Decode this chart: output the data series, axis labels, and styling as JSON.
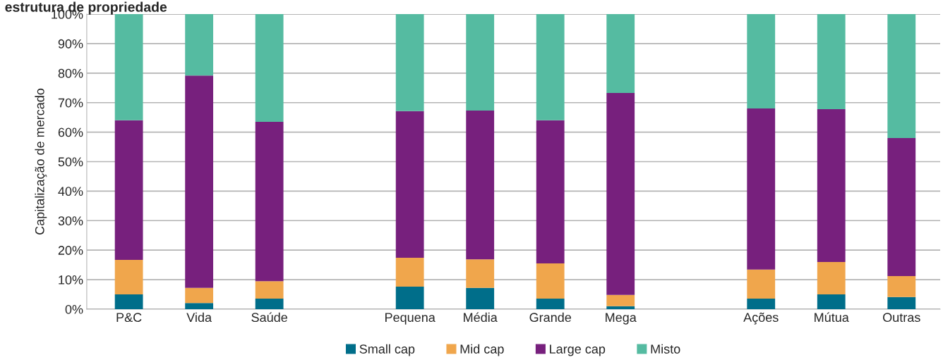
{
  "chart_data": {
    "type": "bar",
    "stacked": true,
    "title": "estrutura de propriedade",
    "ylabel": "Capitalização de mercado",
    "categories": [
      "P&C",
      "Vida",
      "Saúde",
      null,
      "Pequena",
      "Média",
      "Grande",
      "Mega",
      null,
      "Ações",
      "Mútua",
      "Outras"
    ],
    "series": [
      {
        "name": "Small cap",
        "color": "#006e8a",
        "values": [
          5.0,
          2.1,
          3.6,
          null,
          7.6,
          7.2,
          3.6,
          1.0,
          null,
          3.6,
          5.0,
          4.1
        ]
      },
      {
        "name": "Mid cap",
        "color": "#f0a64c",
        "values": [
          11.7,
          5.1,
          5.9,
          null,
          9.8,
          9.7,
          11.9,
          3.8,
          null,
          9.8,
          11.0,
          7.1
        ]
      },
      {
        "name": "Large cap",
        "color": "#77207d",
        "values": [
          47.3,
          72.0,
          54.0,
          null,
          49.7,
          50.4,
          48.5,
          68.5,
          null,
          54.6,
          51.8,
          46.8
        ]
      },
      {
        "name": "Misto",
        "color": "#55bba1",
        "values": [
          36.0,
          20.8,
          36.5,
          null,
          32.9,
          32.7,
          36.0,
          26.7,
          null,
          32.0,
          32.2,
          42.0
        ]
      }
    ],
    "ylim": [
      0,
      100
    ],
    "yticks": [
      {
        "value": 0,
        "label": "0%"
      },
      {
        "value": 10,
        "label": "10%"
      },
      {
        "value": 20,
        "label": "20%"
      },
      {
        "value": 30,
        "label": "30%"
      },
      {
        "value": 40,
        "label": "40%"
      },
      {
        "value": 50,
        "label": "50%"
      },
      {
        "value": 60,
        "label": "60%"
      },
      {
        "value": 70,
        "label": "70%"
      },
      {
        "value": 80,
        "label": "80%"
      },
      {
        "value": 90,
        "label": "90%"
      },
      {
        "value": 100,
        "label": "100%"
      }
    ],
    "grid": "y",
    "legend": "bottom"
  }
}
